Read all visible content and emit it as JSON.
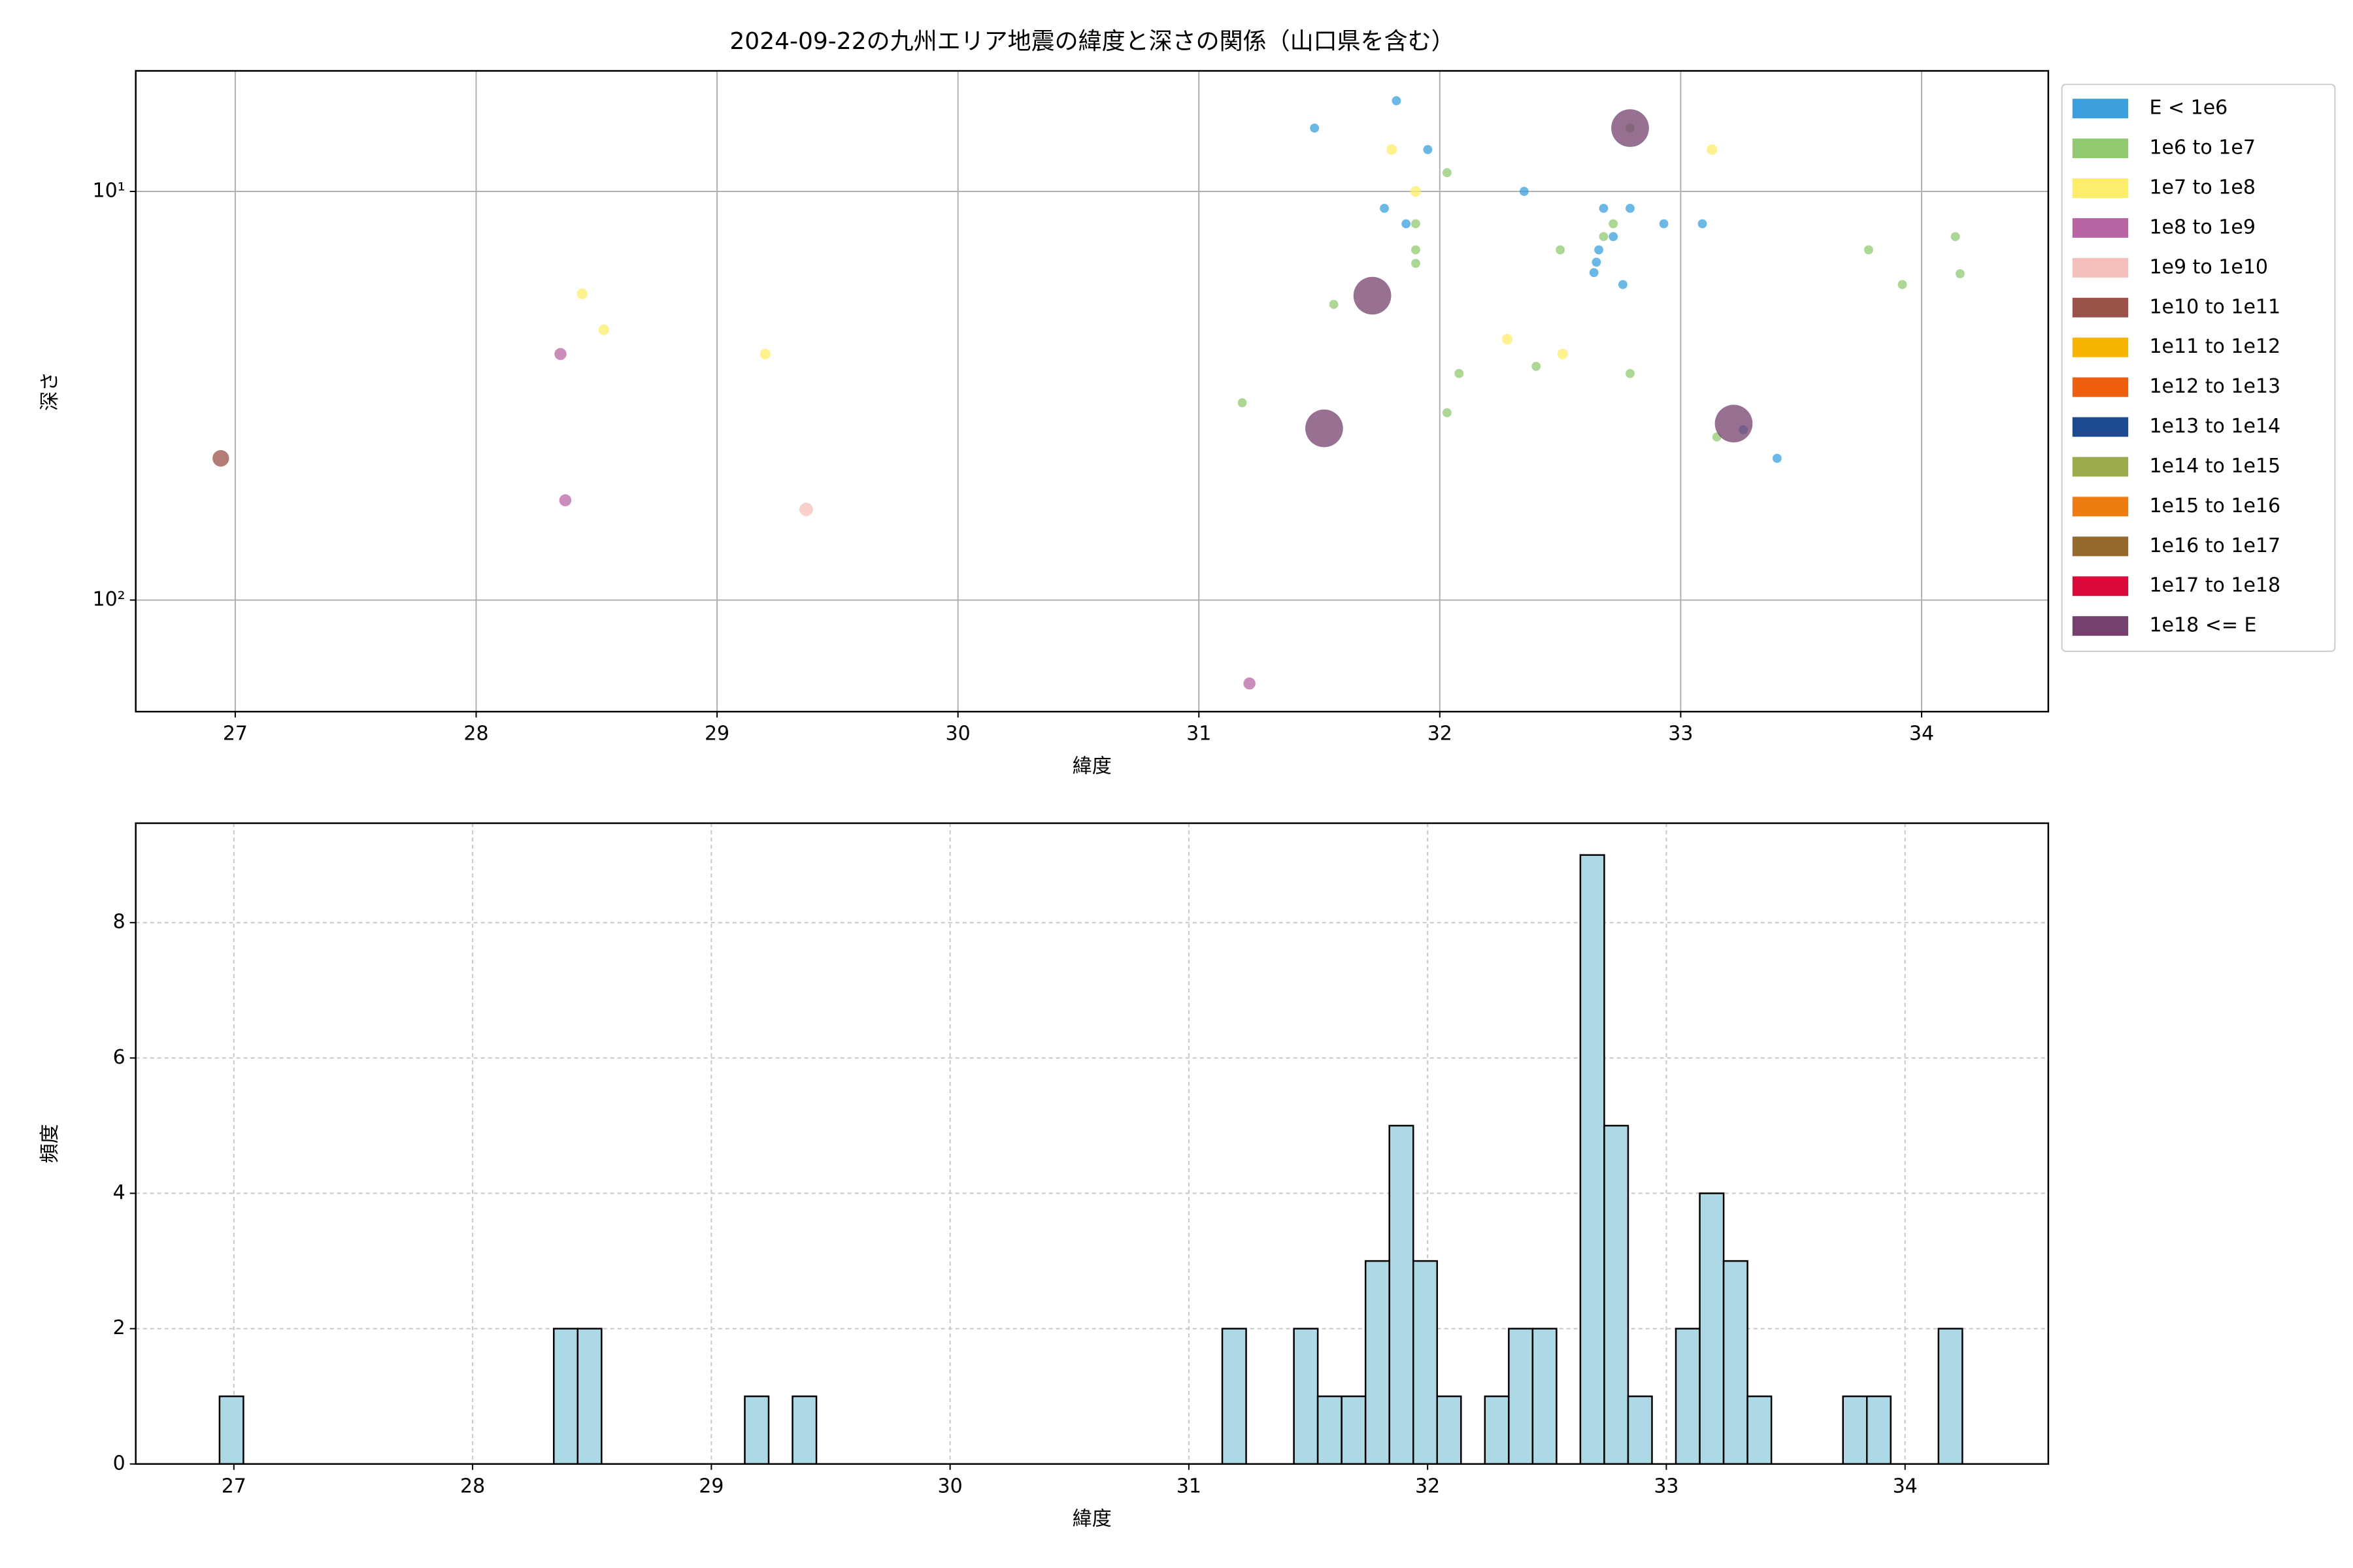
{
  "chart_data": [
    {
      "type": "scatter",
      "title": "2024-09-22の九州エリア地震の緯度と深さの関係（山口県を含む）",
      "x_label": "緯度",
      "y_label": "深さ",
      "xlim": [
        26.587,
        34.526
      ],
      "xticks": [
        27,
        28,
        29,
        30,
        31,
        32,
        33,
        34
      ],
      "ylim": [
        5.07,
        187.5
      ],
      "y_scale": "log",
      "y_inverted": true,
      "yticks": [
        {
          "value": 10,
          "label": "10¹"
        },
        {
          "value": 100,
          "label": "10²"
        }
      ],
      "grid": true,
      "grid_style": "solid",
      "legend": "outside-upper-right",
      "series": [
        {
          "name": "E < 1e6",
          "color": "#3a9fdc",
          "marker_size": 3,
          "x": [
            31.48,
            31.82,
            31.95,
            31.77,
            31.86,
            32.35,
            32.68,
            32.79,
            32.72,
            32.66,
            32.65,
            32.64,
            32.76,
            32.93,
            33.09,
            33.26,
            33.4
          ],
          "values": [
            7.0,
            6.0,
            7.9,
            11,
            12,
            10,
            11,
            11,
            12.9,
            13.9,
            14.9,
            15.8,
            16.9,
            12,
            12,
            38.3,
            45
          ]
        },
        {
          "name": "1e6 to 1e7",
          "color": "#90c970",
          "marker_size": 3,
          "x": [
            32.79,
            32.03,
            31.9,
            31.9,
            31.9,
            32.72,
            32.68,
            32.5,
            31.56,
            32.08,
            32.4,
            32.79,
            31.18,
            32.03,
            33.15,
            33.78,
            33.92,
            34.14,
            34.16
          ],
          "values": [
            7.0,
            9.0,
            12,
            13.9,
            15,
            12,
            12.9,
            13.9,
            18.9,
            27.9,
            26.8,
            27.9,
            32.9,
            34.8,
            39.9,
            13.9,
            16.9,
            12.9,
            15.9
          ]
        },
        {
          "name": "1e7 to 1e8",
          "color": "#fded6a",
          "marker_size": 3.5,
          "x": [
            31.8,
            31.9,
            33.13,
            28.44,
            28.53,
            29.2,
            32.28,
            32.51
          ],
          "values": [
            7.9,
            10,
            7.9,
            17.8,
            21.8,
            25,
            23,
            25
          ]
        },
        {
          "name": "1e8 to 1e9",
          "color": "#b964a4",
          "marker_size": 4,
          "x": [
            28.35,
            28.37,
            31.21
          ],
          "values": [
            25,
            57,
            160
          ]
        },
        {
          "name": "1e9 to 1e10",
          "color": "#f5c0bb",
          "marker_size": 4.5,
          "x": [
            29.37
          ],
          "values": [
            60
          ]
        },
        {
          "name": "1e10 to 1e11",
          "color": "#9a5148",
          "marker_size": 5.5,
          "x": [
            26.94
          ],
          "values": [
            45
          ]
        },
        {
          "name": "1e11 to 1e12",
          "color": "#f7b500",
          "marker_size": 6,
          "x": [],
          "values": []
        },
        {
          "name": "1e12 to 1e13",
          "color": "#ee6010",
          "marker_size": 6,
          "x": [],
          "values": []
        },
        {
          "name": "1e13 to 1e14",
          "color": "#1b4a8f",
          "marker_size": 6,
          "x": [],
          "values": []
        },
        {
          "name": "1e14 to 1e15",
          "color": "#9bac4d",
          "marker_size": 6,
          "x": [],
          "values": []
        },
        {
          "name": "1e15 to 1e16",
          "color": "#ee7c10",
          "marker_size": 6,
          "x": [],
          "values": []
        },
        {
          "name": "1e16 to 1e17",
          "color": "#956a2c",
          "marker_size": 6,
          "x": [],
          "values": []
        },
        {
          "name": "1e17 to 1e18",
          "color": "#dc0a3b",
          "marker_size": 6,
          "x": [],
          "values": []
        },
        {
          "name": "1e18 <= E",
          "color": "#75406e",
          "marker_size": 12.5,
          "x": [
            32.79,
            31.72,
            31.52,
            33.22
          ],
          "values": [
            7.0,
            18,
            38,
            37
          ]
        }
      ]
    },
    {
      "type": "histogram",
      "x_label": "緯度",
      "y_label": "頻度",
      "xlim": [
        26.589,
        34.6
      ],
      "xticks": [
        27,
        28,
        29,
        30,
        31,
        32,
        33,
        34
      ],
      "ylim": [
        0,
        9.47
      ],
      "yticks": [
        0,
        2,
        4,
        6,
        8
      ],
      "grid": true,
      "grid_style": "dashed",
      "color": "#add8e6",
      "edge_color": "#000000",
      "bins": [
        26.94,
        27.04,
        27.14,
        27.24,
        27.34,
        27.44,
        27.54,
        27.64,
        27.74,
        27.84,
        27.94,
        28.04,
        28.14,
        28.24,
        28.34,
        28.44,
        28.54,
        28.64,
        28.74,
        28.84,
        28.94,
        29.04,
        29.14,
        29.24,
        29.34,
        29.44,
        29.54,
        29.64,
        29.74,
        29.84,
        29.94,
        30.04,
        30.14,
        30.24,
        30.34,
        30.44,
        30.54,
        30.64,
        30.74,
        30.84,
        30.94,
        31.04,
        31.14,
        31.24,
        31.34,
        31.44,
        31.54,
        31.64,
        31.74,
        31.84,
        31.94,
        32.04,
        32.14,
        32.24,
        32.34,
        32.44,
        32.54,
        32.64,
        32.74,
        32.84,
        32.94,
        33.04,
        33.14,
        33.24,
        33.34,
        33.44,
        33.54,
        33.64,
        33.74,
        33.84,
        33.94,
        34.04,
        34.14,
        34.24
      ],
      "values": [
        1,
        0,
        0,
        0,
        0,
        0,
        0,
        0,
        0,
        0,
        0,
        0,
        0,
        0,
        2,
        2,
        0,
        0,
        0,
        0,
        0,
        0,
        1,
        0,
        1,
        0,
        0,
        0,
        0,
        0,
        0,
        0,
        0,
        0,
        0,
        0,
        0,
        0,
        0,
        0,
        0,
        0,
        2,
        0,
        0,
        2,
        1,
        1,
        3,
        5,
        3,
        1,
        0,
        1,
        2,
        2,
        0,
        9,
        5,
        1,
        0,
        2,
        4,
        3,
        1,
        0,
        0,
        0,
        1,
        1,
        0,
        0,
        2
      ]
    }
  ]
}
